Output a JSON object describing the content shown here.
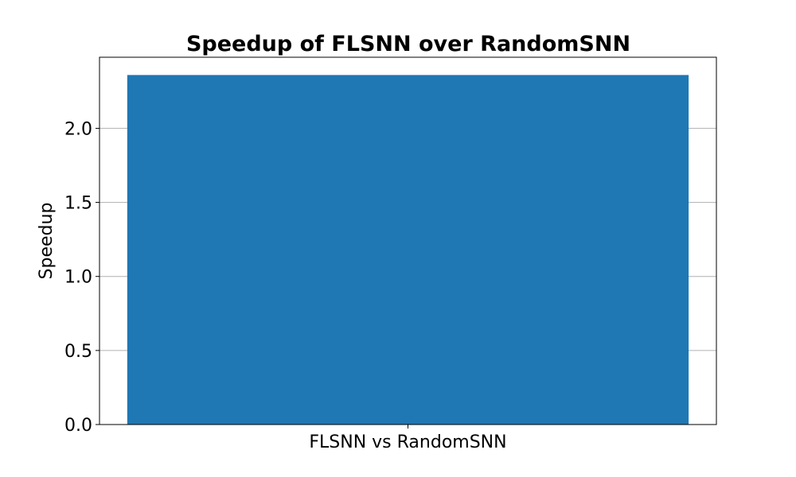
{
  "chart_data": {
    "type": "bar",
    "title": "Speedup of FLSNN over RandomSNN",
    "xlabel": "",
    "ylabel": "Speedup",
    "categories": [
      "FLSNN vs RandomSNN"
    ],
    "values": [
      2.36
    ],
    "ylim": [
      0,
      2.48
    ],
    "yticks": [
      0.0,
      0.5,
      1.0,
      1.5,
      2.0
    ],
    "ytick_labels": [
      "0.0",
      "0.5",
      "1.0",
      "1.5",
      "2.0"
    ],
    "grid": "y-major",
    "bar_color": "#1f77b4",
    "grid_color": "#b0b0b0"
  }
}
